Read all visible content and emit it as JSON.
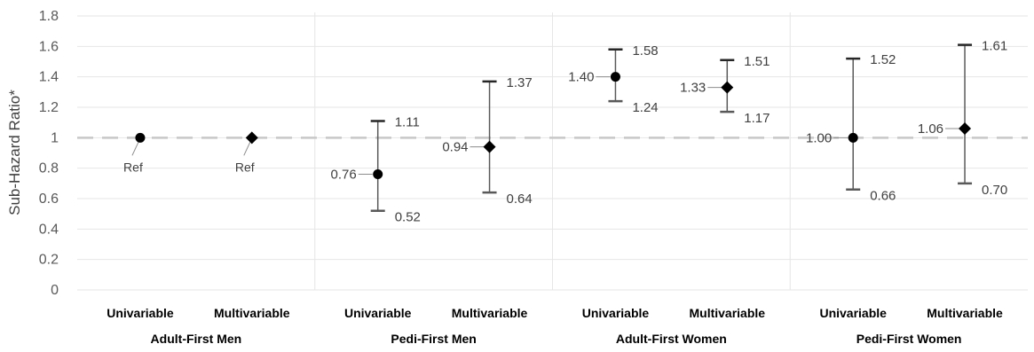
{
  "chart_data": {
    "type": "scatter",
    "ylabel": "Sub-Hazard Ratio*",
    "ylim": [
      0,
      1.8
    ],
    "yticks": [
      "0",
      "0.2",
      "0.4",
      "0.6",
      "0.8",
      "1",
      "1.2",
      "1.4",
      "1.6",
      "1.8"
    ],
    "reference_line": 1,
    "groups": [
      "Adult-First Men",
      "Pedi-First Men",
      "Adult-First Women",
      "Pedi-First Women"
    ],
    "points": [
      {
        "group": "Adult-First Men",
        "model": "Univariable",
        "marker": "circle",
        "value": 1.0,
        "value_label": "Ref"
      },
      {
        "group": "Adult-First Men",
        "model": "Multivariable",
        "marker": "diamond",
        "value": 1.0,
        "value_label": "Ref"
      },
      {
        "group": "Pedi-First Men",
        "model": "Univariable",
        "marker": "circle",
        "value": 0.76,
        "lower": 0.52,
        "upper": 1.11,
        "value_label": "0.76",
        "lower_label": "0.52",
        "upper_label": "1.11"
      },
      {
        "group": "Pedi-First Men",
        "model": "Multivariable",
        "marker": "diamond",
        "value": 0.94,
        "lower": 0.64,
        "upper": 1.37,
        "value_label": "0.94",
        "lower_label": "0.64",
        "upper_label": "1.37"
      },
      {
        "group": "Adult-First Women",
        "model": "Univariable",
        "marker": "circle",
        "value": 1.4,
        "lower": 1.24,
        "upper": 1.58,
        "value_label": "1.40",
        "lower_label": "1.24",
        "upper_label": "1.58"
      },
      {
        "group": "Adult-First Women",
        "model": "Multivariable",
        "marker": "diamond",
        "value": 1.33,
        "lower": 1.17,
        "upper": 1.51,
        "value_label": "1.33",
        "lower_label": "1.17",
        "upper_label": "1.51"
      },
      {
        "group": "Pedi-First Women",
        "model": "Univariable",
        "marker": "circle",
        "value": 1.0,
        "lower": 0.66,
        "upper": 1.52,
        "value_label": "1.00",
        "lower_label": "0.66",
        "upper_label": "1.52"
      },
      {
        "group": "Pedi-First Women",
        "model": "Multivariable",
        "marker": "diamond",
        "value": 1.06,
        "lower": 0.7,
        "upper": 1.61,
        "value_label": "1.06",
        "lower_label": "0.70",
        "upper_label": "1.61"
      }
    ],
    "colors": {
      "marker": "#000000",
      "errorbar": "#595959",
      "reference_line": "#c8c8c8",
      "grid": "#e6e6e6"
    },
    "grid": true
  }
}
